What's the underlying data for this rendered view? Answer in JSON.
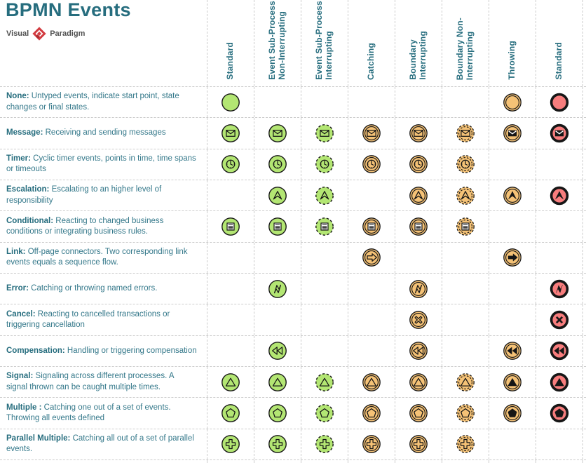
{
  "title": "BPMN Events",
  "logo": {
    "left": "Visual",
    "right": "Paradigm"
  },
  "colors": {
    "teal_title": "#266d7e",
    "teal_text": "#34788a",
    "green": "#b3e673",
    "orange": "#f5c276",
    "red": "#f87d7d",
    "stroke": "#161616",
    "grid": "#cccccc",
    "logo_red": "#d23b40",
    "logo_text": "#4f4f4f"
  },
  "columns": [
    {
      "label": "Standard",
      "ring": "single",
      "dash": false,
      "thick": false,
      "color": "green",
      "glyph_style": "outline"
    },
    {
      "label": "Event Sub-Process\nNon-Interrupting",
      "ring": "single",
      "dash": false,
      "thick": false,
      "color": "green",
      "glyph_style": "outline"
    },
    {
      "label": "Event Sub-Process\nInterrupting",
      "ring": "single",
      "dash": true,
      "thick": false,
      "color": "green",
      "glyph_style": "outline"
    },
    {
      "label": "Catching",
      "ring": "double",
      "dash": false,
      "thick": false,
      "color": "orange",
      "glyph_style": "outline"
    },
    {
      "label": "Boundary\nInterrupting",
      "ring": "double",
      "dash": false,
      "thick": false,
      "color": "orange",
      "glyph_style": "outline"
    },
    {
      "label": "Boundary Non-\nInterrupting",
      "ring": "double",
      "dash": true,
      "thick": false,
      "color": "orange",
      "glyph_style": "outline"
    },
    {
      "label": "Throwing",
      "ring": "double",
      "dash": false,
      "thick": false,
      "color": "orange",
      "glyph_style": "filled"
    },
    {
      "label": "Standard",
      "ring": "single",
      "dash": false,
      "thick": true,
      "color": "red",
      "glyph_style": "filled"
    }
  ],
  "rows": [
    {
      "term": "None:",
      "desc": "Untyped events, indicate start point, state changes or final states.",
      "glyph": "none",
      "cells": [
        1,
        0,
        0,
        0,
        0,
        0,
        1,
        1
      ]
    },
    {
      "term": "Message:",
      "desc": "Receiving and sending messages",
      "glyph": "message",
      "cells": [
        1,
        1,
        1,
        1,
        1,
        1,
        1,
        1
      ]
    },
    {
      "term": "Timer:",
      "desc": "Cyclic timer events, points in time, time spans or timeouts",
      "glyph": "timer",
      "cells": [
        1,
        1,
        1,
        1,
        1,
        1,
        0,
        0
      ]
    },
    {
      "term": "Escalation:",
      "desc": "Escalating to an higher level of responsibility",
      "glyph": "escalation",
      "cells": [
        0,
        1,
        1,
        0,
        1,
        1,
        1,
        1
      ]
    },
    {
      "term": "Conditional:",
      "desc": "Reacting to changed business conditions or integrating business rules.",
      "glyph": "conditional",
      "cells": [
        1,
        1,
        1,
        1,
        1,
        1,
        0,
        0
      ]
    },
    {
      "term": "Link:",
      "desc": "Off-page connectors. Two corresponding link events equals a sequence flow.",
      "glyph": "link",
      "cells": [
        0,
        0,
        0,
        1,
        0,
        0,
        1,
        0
      ]
    },
    {
      "term": "Error:",
      "desc": "Catching or throwing named errors.",
      "glyph": "error",
      "cells": [
        0,
        1,
        0,
        0,
        1,
        0,
        0,
        1
      ]
    },
    {
      "term": "Cancel:",
      "desc": "Reacting to cancelled transactions or triggering cancellation",
      "glyph": "cancel",
      "cells": [
        0,
        0,
        0,
        0,
        1,
        0,
        0,
        1
      ]
    },
    {
      "term": "Compensation:",
      "desc": "Handling or triggering compensation",
      "glyph": "compensation",
      "cells": [
        0,
        1,
        0,
        0,
        1,
        0,
        1,
        1
      ]
    },
    {
      "term": "Signal:",
      "desc": "Signaling across different processes. A signal thrown can be caught multiple times.",
      "glyph": "signal",
      "cells": [
        1,
        1,
        1,
        1,
        1,
        1,
        1,
        1
      ]
    },
    {
      "term": "Multiple :",
      "desc": "Catching one out of a set of events. Throwing all events defined",
      "glyph": "multiple",
      "cells": [
        1,
        1,
        1,
        1,
        1,
        1,
        1,
        1
      ]
    },
    {
      "term": "Parallel Multiple:",
      "desc": "Catching all out of a set of parallel events.",
      "glyph": "parallel-multiple",
      "cells": [
        1,
        1,
        1,
        1,
        1,
        1,
        0,
        0
      ]
    }
  ]
}
